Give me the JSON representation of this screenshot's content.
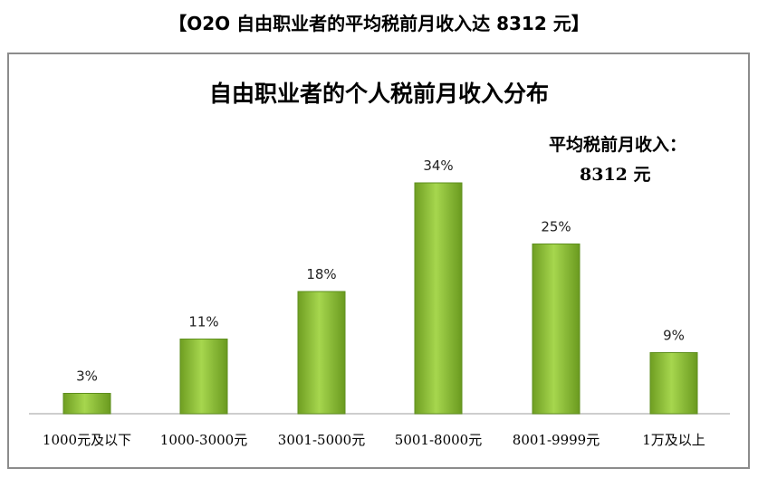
{
  "header": {
    "title": "【O2O 自由职业者的平均税前月收入达 8312 元】"
  },
  "chart_data": {
    "type": "bar",
    "title": "自由职业者的个人税前月收入分布",
    "categories": [
      "1000元及以下",
      "1000-3000元",
      "3001-5000元",
      "5001-8000元",
      "8001-9999元",
      "1万及以上"
    ],
    "values": [
      3,
      11,
      18,
      34,
      25,
      9
    ],
    "value_labels": [
      "3%",
      "11%",
      "18%",
      "34%",
      "25%",
      "9%"
    ],
    "ylim": [
      0,
      40
    ],
    "grid": false,
    "bar_color": "#8cc63f",
    "bar_color_dark": "#5e8f1e",
    "annotation": {
      "label": "平均税前月收入：",
      "value": "8312 元"
    }
  }
}
